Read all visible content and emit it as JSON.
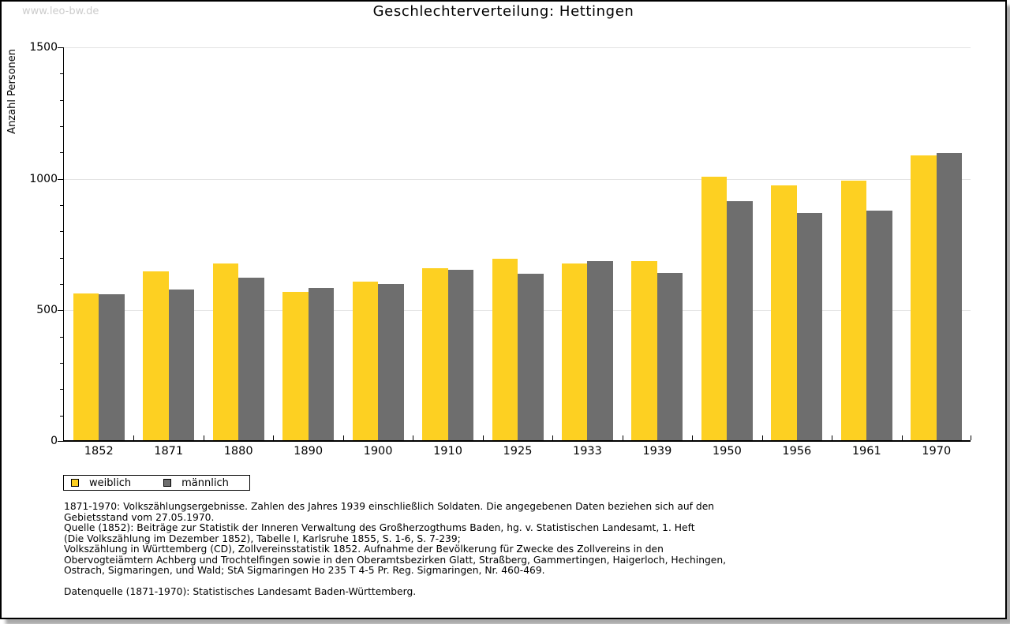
{
  "watermark": "www.leo-bw.de",
  "header": {
    "title": "Geschlechterverteilung: Hettingen"
  },
  "chart_data": {
    "type": "bar",
    "title": "Geschlechterverteilung: Hettingen",
    "xlabel": "",
    "ylabel": "Anzahl Personen",
    "ylim": [
      0,
      1500
    ],
    "yticks": [
      0,
      500,
      1000,
      1500
    ],
    "minor_tick_step": 100,
    "grid": "horizontal-on",
    "legend_position": "bottom-left",
    "categories": [
      "1852",
      "1871",
      "1880",
      "1890",
      "1900",
      "1910",
      "1925",
      "1933",
      "1939",
      "1950",
      "1956",
      "1961",
      "1970"
    ],
    "series": [
      {
        "name": "weiblich",
        "color": "#fdd022",
        "values": [
          557,
          643,
          673,
          563,
          602,
          653,
          690,
          672,
          682,
          1003,
          968,
          987,
          1083
        ]
      },
      {
        "name": "männlich",
        "color": "#6e6e6e",
        "values": [
          554,
          572,
          618,
          578,
          595,
          647,
          632,
          680,
          635,
          908,
          865,
          873,
          1092
        ]
      }
    ]
  },
  "footnotes": {
    "lines": [
      "1871-1970: Volkszählungsergebnisse. Zahlen des Jahres 1939 einschließlich Soldaten. Die angegebenen Daten beziehen sich auf den",
      "Gebietsstand vom 27.05.1970.",
      "Quelle (1852): Beiträge zur Statistik der Inneren Verwaltung des Großherzogthums Baden, hg. v. Statistischen Landesamt, 1. Heft",
      "(Die Volkszählung im Dezember 1852), Tabelle I, Karlsruhe 1855, S. 1-6, S. 7-239;",
      "Volkszählung in Württemberg (CD), Zollvereinsstatistik 1852. Aufnahme der Bevölkerung für Zwecke des Zollvereins in den",
      "Obervogteiämtern Achberg und Trochtelfingen sowie in den Oberamtsbezirken Glatt, Straßberg, Gammertingen, Haigerloch, Hechingen,",
      "Ostrach, Sigmaringen, und Wald; StA Sigmaringen Ho 235 T 4-5 Pr. Reg. Sigmaringen, Nr. 460-469.",
      "",
      "Datenquelle (1871-1970): Statistisches Landesamt Baden-Württemberg."
    ]
  },
  "colors": {
    "weiblich": "#fdd022",
    "männlich": "#6e6e6e",
    "gridline": "#e3e3e3",
    "watermark": "#cccccc"
  }
}
